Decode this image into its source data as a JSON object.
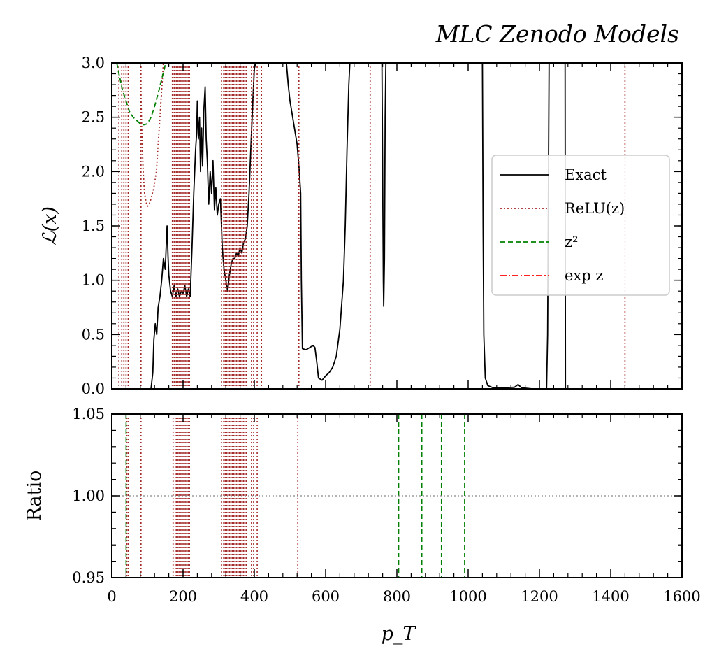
{
  "chart_data": [
    {
      "panel": "main",
      "type": "line",
      "title": "MLC Zenodo Models",
      "ylabel": "ℒ(x)",
      "xlabel": "",
      "xlim": [
        0,
        1600
      ],
      "ylim": [
        0,
        3.0
      ],
      "xticks": [
        0,
        200,
        400,
        600,
        800,
        1000,
        1200,
        1400,
        1600
      ],
      "yticks": [
        0.0,
        0.5,
        1.0,
        1.5,
        2.0,
        2.5,
        3.0
      ],
      "ytick_labels": [
        "0.0",
        "0.5",
        "1.0",
        "1.5",
        "2.0",
        "2.5",
        "3.0"
      ],
      "legend": {
        "position": "right",
        "entries": [
          {
            "label": "Exact",
            "color": "#000000",
            "style": "solid"
          },
          {
            "label": "ReLU(z)",
            "color": "#a52a2a",
            "style": "dotted"
          },
          {
            "label": "z²",
            "color": "#008000",
            "style": "dashed"
          },
          {
            "label": "exp z",
            "color": "#ff0000",
            "style": "dashdot"
          }
        ]
      },
      "series": [
        {
          "name": "Exact",
          "color": "#000000",
          "style": "solid",
          "points": [
            [
              90,
              0
            ],
            [
              110,
              0
            ],
            [
              115,
              0.15
            ],
            [
              118,
              0.45
            ],
            [
              122,
              0.6
            ],
            [
              126,
              0.5
            ],
            [
              130,
              0.75
            ],
            [
              135,
              0.85
            ],
            [
              140,
              1.0
            ],
            [
              145,
              1.2
            ],
            [
              150,
              1.1
            ],
            [
              155,
              1.5
            ],
            [
              158,
              1.2
            ],
            [
              160,
              1.05
            ],
            [
              165,
              0.9
            ],
            [
              170,
              0.85
            ],
            [
              175,
              0.95
            ],
            [
              180,
              0.85
            ],
            [
              185,
              0.92
            ],
            [
              190,
              0.85
            ],
            [
              195,
              0.9
            ],
            [
              200,
              0.88
            ],
            [
              205,
              0.95
            ],
            [
              210,
              0.85
            ],
            [
              215,
              0.92
            ],
            [
              220,
              0.85
            ],
            [
              225,
              1.3
            ],
            [
              230,
              1.8
            ],
            [
              235,
              2.2
            ],
            [
              238,
              2.35
            ],
            [
              240,
              2.65
            ],
            [
              243,
              2.3
            ],
            [
              246,
              2.5
            ],
            [
              249,
              2.0
            ],
            [
              252,
              2.4
            ],
            [
              255,
              2.05
            ],
            [
              258,
              2.55
            ],
            [
              262,
              2.78
            ],
            [
              265,
              2.3
            ],
            [
              268,
              2.1
            ],
            [
              272,
              1.7
            ],
            [
              276,
              2.0
            ],
            [
              280,
              1.8
            ],
            [
              284,
              2.1
            ],
            [
              288,
              1.65
            ],
            [
              292,
              1.85
            ],
            [
              296,
              1.6
            ],
            [
              300,
              1.7
            ],
            [
              305,
              1.75
            ],
            [
              310,
              1.3
            ],
            [
              315,
              1.1
            ],
            [
              320,
              1.0
            ],
            [
              325,
              0.9
            ],
            [
              330,
              1.05
            ],
            [
              335,
              1.15
            ],
            [
              340,
              1.2
            ],
            [
              345,
              1.2
            ],
            [
              350,
              1.25
            ],
            [
              355,
              1.22
            ],
            [
              360,
              1.3
            ],
            [
              365,
              1.25
            ],
            [
              370,
              1.35
            ],
            [
              375,
              1.38
            ],
            [
              380,
              1.5
            ],
            [
              385,
              1.8
            ],
            [
              390,
              2.2
            ],
            [
              395,
              2.6
            ],
            [
              400,
              2.95
            ],
            [
              405,
              3.0
            ],
            [
              410,
              3.0
            ],
            [
              420,
              3.0
            ],
            [
              430,
              3.0
            ],
            [
              440,
              3.0
            ],
            [
              450,
              3.0
            ],
            [
              460,
              3.0
            ],
            [
              480,
              3.0
            ],
            [
              490,
              3.0
            ],
            [
              495,
              2.8
            ],
            [
              500,
              2.65
            ],
            [
              505,
              2.55
            ],
            [
              510,
              2.45
            ],
            [
              515,
              2.35
            ],
            [
              520,
              2.25
            ],
            [
              525,
              2.05
            ],
            [
              530,
              1.8
            ],
            [
              532,
              1.0
            ],
            [
              535,
              0.37
            ],
            [
              545,
              0.36
            ],
            [
              555,
              0.38
            ],
            [
              565,
              0.4
            ],
            [
              570,
              0.38
            ],
            [
              575,
              0.25
            ],
            [
              580,
              0.1
            ],
            [
              590,
              0.08
            ],
            [
              600,
              0.12
            ],
            [
              610,
              0.15
            ],
            [
              620,
              0.2
            ],
            [
              630,
              0.3
            ],
            [
              640,
              0.55
            ],
            [
              650,
              1.0
            ],
            [
              655,
              1.5
            ],
            [
              660,
              2.2
            ],
            [
              665,
              2.8
            ],
            [
              668,
              3.0
            ],
            [
              758,
              3.0
            ],
            [
              760,
              2.0
            ],
            [
              762,
              1.0
            ],
            [
              763,
              0.76
            ],
            [
              765,
              1.2
            ],
            [
              767,
              2.5
            ],
            [
              769,
              3.0
            ],
            [
              1040,
              3.0
            ],
            [
              1042,
              1.5
            ],
            [
              1044,
              0.5
            ],
            [
              1048,
              0.1
            ],
            [
              1055,
              0.03
            ],
            [
              1070,
              0.01
            ],
            [
              1100,
              0.01
            ],
            [
              1130,
              0.015
            ],
            [
              1140,
              0.04
            ],
            [
              1150,
              0.01
            ],
            [
              1180,
              0.0
            ],
            [
              1220,
              0.0
            ],
            [
              1223,
              0.5
            ],
            [
              1225,
              1.8
            ],
            [
              1227,
              3.0
            ],
            [
              1272,
              3.0
            ],
            [
              1273,
              0.0
            ],
            [
              1600,
              0.0
            ]
          ]
        },
        {
          "name": "ReLU(z)",
          "color": "#a52a2a",
          "style": "dotted",
          "vlines": [
            20,
            28,
            34,
            40,
            46,
            82,
            170,
            175,
            178,
            182,
            186,
            190,
            194,
            198,
            202,
            206,
            210,
            214,
            218,
            308,
            314,
            318,
            322,
            326,
            330,
            334,
            338,
            342,
            346,
            350,
            354,
            358,
            362,
            366,
            370,
            374,
            378,
            392,
            398,
            408,
            420,
            525,
            725,
            1440
          ],
          "curve": [
            [
              80,
              3.0
            ],
            [
              84,
              2.4
            ],
            [
              88,
              2.0
            ],
            [
              92,
              1.8
            ],
            [
              96,
              1.72
            ],
            [
              100,
              1.68
            ],
            [
              105,
              1.7
            ],
            [
              110,
              1.75
            ],
            [
              118,
              1.85
            ],
            [
              125,
              2.0
            ],
            [
              130,
              2.25
            ],
            [
              135,
              2.5
            ],
            [
              140,
              2.75
            ],
            [
              145,
              3.0
            ]
          ]
        },
        {
          "name": "z²",
          "color": "#008000",
          "style": "dashed",
          "curve": [
            [
              14,
              3.0
            ],
            [
              20,
              2.9
            ],
            [
              30,
              2.75
            ],
            [
              40,
              2.65
            ],
            [
              50,
              2.55
            ],
            [
              60,
              2.5
            ],
            [
              70,
              2.47
            ],
            [
              80,
              2.44
            ],
            [
              90,
              2.43
            ],
            [
              100,
              2.44
            ],
            [
              110,
              2.5
            ],
            [
              120,
              2.6
            ],
            [
              130,
              2.72
            ],
            [
              140,
              2.85
            ],
            [
              150,
              2.98
            ],
            [
              152,
              3.0
            ]
          ]
        },
        {
          "name": "exp z",
          "color": "#ff0000",
          "style": "dashdot",
          "points": []
        }
      ]
    },
    {
      "panel": "ratio",
      "type": "line",
      "ylabel": "Ratio",
      "xlabel": "p_T",
      "xlim": [
        0,
        1600
      ],
      "ylim": [
        0.95,
        1.05
      ],
      "xticks": [
        0,
        200,
        400,
        600,
        800,
        1000,
        1200,
        1400,
        1600
      ],
      "xtick_labels": [
        "0",
        "200",
        "400",
        "600",
        "800",
        "1000",
        "1200",
        "1400",
        "1600"
      ],
      "yticks": [
        0.95,
        1.0,
        1.05
      ],
      "ytick_labels": [
        "0.95",
        "1.00",
        "1.05"
      ],
      "reference_line": 1.0,
      "series": [
        {
          "name": "ReLU(z)",
          "color": "#a52a2a",
          "style": "dotted",
          "vlines": [
            42,
            46,
            82,
            172,
            178,
            182,
            186,
            190,
            194,
            198,
            202,
            206,
            210,
            214,
            218,
            308,
            314,
            318,
            322,
            326,
            330,
            334,
            338,
            342,
            346,
            350,
            354,
            358,
            362,
            366,
            370,
            374,
            378,
            392,
            398,
            408,
            522
          ]
        },
        {
          "name": "z²",
          "color": "#008000",
          "style": "dashed",
          "vlines": [
            40,
            805,
            870,
            925,
            990
          ]
        }
      ]
    }
  ]
}
